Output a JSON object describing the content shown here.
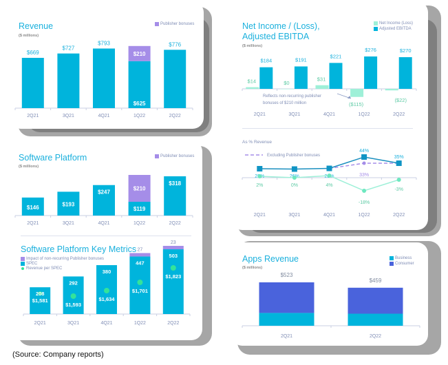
{
  "colors": {
    "cyan": "#00b4dc",
    "purple": "#a58de8",
    "mint": "#9ef0d8",
    "green_dot": "#34e39a",
    "royal_blue": "#4a63dc",
    "teal_line": "#1a8fbf",
    "label_blue": "#1ab0dd",
    "label_mint": "#5ccaa4",
    "axis": "#c9cfe3",
    "tick_label": "#7f8db5"
  },
  "source_note": "(Source: Company reports)",
  "chart_data": [
    {
      "id": "revenue",
      "type": "bar",
      "title": "Revenue",
      "subtitle": "($ millions)",
      "legend": [
        {
          "label": "Publisher bonuses",
          "color": "#a58de8"
        }
      ],
      "categories": [
        "2Q21",
        "3Q21",
        "4Q21",
        "1Q22",
        "2Q22"
      ],
      "series": [
        {
          "name": "Revenue",
          "values": [
            669,
            727,
            793,
            625,
            776
          ],
          "labels": [
            "$669",
            "$727",
            "$793",
            "$625",
            "$776"
          ]
        },
        {
          "name": "Publisher bonuses",
          "values": [
            0,
            0,
            0,
            210,
            0
          ],
          "labels": [
            "",
            "",
            "",
            "$210",
            ""
          ]
        }
      ],
      "ylim": [
        0,
        900
      ]
    },
    {
      "id": "software_platform",
      "type": "bar",
      "title": "Software Platform",
      "subtitle": "($ millions)",
      "legend": [
        {
          "label": "Publisher bonuses",
          "color": "#a58de8"
        }
      ],
      "categories": [
        "2Q21",
        "3Q21",
        "4Q21",
        "1Q22",
        "2Q22"
      ],
      "series": [
        {
          "name": "Software Platform",
          "values": [
            146,
            193,
            247,
            119,
            318
          ],
          "labels": [
            "$146",
            "$193",
            "$247",
            "$119",
            "$318"
          ]
        },
        {
          "name": "Publisher bonuses",
          "values": [
            0,
            0,
            0,
            210,
            0
          ],
          "labels": [
            "",
            "",
            "",
            "$210",
            ""
          ]
        }
      ],
      "ylim": [
        0,
        360
      ]
    },
    {
      "id": "key_metrics",
      "type": "bar",
      "title": "Software Platform Key Metrics",
      "legend": [
        {
          "label": "Impact of non-recurring Publisher bonuses",
          "color": "#a58de8",
          "shape": "square"
        },
        {
          "label": "SPEC",
          "color": "#00b4dc",
          "shape": "square"
        },
        {
          "label": "Revenue per SPEC",
          "color": "#34e39a",
          "shape": "dot"
        }
      ],
      "categories": [
        "2Q21",
        "3Q21",
        "4Q21",
        "1Q22",
        "2Q22"
      ],
      "series": [
        {
          "name": "SPEC",
          "values": [
            208,
            292,
            380,
            447,
            503
          ],
          "labels": [
            "208",
            "292",
            "380",
            "447",
            "503"
          ]
        },
        {
          "name": "Impact of non-recurring Publisher bonuses",
          "values": [
            0,
            0,
            0,
            27,
            23
          ],
          "labels": [
            "",
            "",
            "",
            "27",
            "23"
          ]
        },
        {
          "name": "Revenue per SPEC",
          "values": [
            1581,
            1593,
            1634,
            1701,
            1823
          ],
          "labels": [
            "$1,581",
            "$1,593",
            "$1,634",
            "$1,701",
            "$1,823"
          ]
        }
      ],
      "ylim": [
        0,
        560
      ]
    },
    {
      "id": "net_income_ebitda",
      "type": "bar",
      "title": "Net Income / (Loss), Adjusted EBITDA",
      "title_lines": [
        "Net Income / (Loss),",
        "Adjusted EBITDA"
      ],
      "subtitle": "($ millions)",
      "legend": [
        {
          "label": "Net Income (Loss)",
          "color": "#9ef0d8"
        },
        {
          "label": "Adjusted EBITDA",
          "color": "#00b4dc"
        }
      ],
      "categories": [
        "2Q21",
        "3Q21",
        "4Q21",
        "1Q22",
        "2Q22"
      ],
      "series": [
        {
          "name": "Net Income (Loss)",
          "values": [
            14,
            0,
            31,
            -115,
            -22
          ],
          "labels": [
            "$14",
            "$0",
            "$31",
            "($115)",
            "($22)"
          ]
        },
        {
          "name": "Adjusted EBITDA",
          "values": [
            184,
            191,
            221,
            276,
            270
          ],
          "labels": [
            "$184",
            "$191",
            "$221",
            "$276",
            "$270"
          ]
        }
      ],
      "annotation": "Reflects non-recurring publisher bonuses of $210 million",
      "annotation_lines": [
        "Reflects non-recurring publisher",
        "bonuses of $210 million"
      ],
      "ylim": [
        -130,
        300
      ]
    },
    {
      "id": "pct_revenue",
      "type": "line",
      "title": "As % Revenue",
      "legend": [
        {
          "label": "Excluding Publisher bonuses",
          "color": "#a58de8",
          "style": "dashed"
        }
      ],
      "categories": [
        "2Q21",
        "3Q21",
        "4Q21",
        "1Q22",
        "2Q22"
      ],
      "series": [
        {
          "name": "Adjusted EBITDA margin",
          "values": [
            27,
            26,
            28,
            44,
            35
          ],
          "labels": [
            "27%",
            "26%",
            "28%",
            "44%",
            "35%"
          ]
        },
        {
          "name": "Excluding Publisher bonuses",
          "values": [
            null,
            null,
            28,
            33,
            35
          ],
          "labels": [
            "",
            "",
            "",
            "33%",
            ""
          ]
        },
        {
          "name": "Net Income margin",
          "values": [
            2,
            0,
            4,
            -18,
            -3
          ],
          "labels": [
            "2%",
            "0%",
            "4%",
            "-18%",
            "-3%"
          ]
        }
      ],
      "ylim": [
        -25,
        50
      ]
    },
    {
      "id": "apps_revenue",
      "type": "bar",
      "title": "Apps Revenue",
      "subtitle": "($ millions)",
      "legend": [
        {
          "label": "Business",
          "color": "#00b4dc"
        },
        {
          "label": "Consumer",
          "color": "#4a63dc"
        }
      ],
      "categories": [
        "2Q21",
        "2Q22"
      ],
      "series": [
        {
          "name": "Business",
          "values": [
            165,
            155
          ]
        },
        {
          "name": "Consumer",
          "values": [
            358,
            304
          ]
        }
      ],
      "totals": [
        "$523",
        "$459"
      ],
      "ylim": [
        0,
        560
      ]
    }
  ]
}
